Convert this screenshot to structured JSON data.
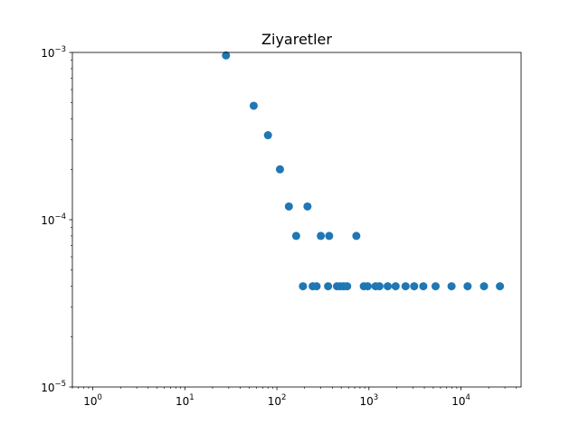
{
  "chart_data": {
    "type": "scatter",
    "title": "Ziyaretler",
    "xlabel": "",
    "ylabel": "",
    "x_scale": "log",
    "y_scale": "log",
    "xlim": [
      0.6,
      45000
    ],
    "ylim": [
      1e-05,
      0.001
    ],
    "grid": false,
    "marker_color": "#1f77b4",
    "x_ticks": [
      {
        "value": 1,
        "base": "10",
        "exp": "0"
      },
      {
        "value": 10,
        "base": "10",
        "exp": "1"
      },
      {
        "value": 100,
        "base": "10",
        "exp": "2"
      },
      {
        "value": 1000,
        "base": "10",
        "exp": "3"
      },
      {
        "value": 10000,
        "base": "10",
        "exp": "4"
      }
    ],
    "y_ticks": [
      {
        "value": 1e-05,
        "base": "10",
        "exp": "−5"
      },
      {
        "value": 0.0001,
        "base": "10",
        "exp": "−4"
      },
      {
        "value": 0.001,
        "base": "10",
        "exp": "−3"
      }
    ],
    "points": [
      {
        "x": 28,
        "y": 0.00096
      },
      {
        "x": 56,
        "y": 0.00048
      },
      {
        "x": 80,
        "y": 0.00032
      },
      {
        "x": 108,
        "y": 0.0002
      },
      {
        "x": 135,
        "y": 0.00012
      },
      {
        "x": 215,
        "y": 0.00012
      },
      {
        "x": 162,
        "y": 8e-05
      },
      {
        "x": 300,
        "y": 8e-05
      },
      {
        "x": 370,
        "y": 8e-05
      },
      {
        "x": 730,
        "y": 8e-05
      },
      {
        "x": 192,
        "y": 4e-05
      },
      {
        "x": 245,
        "y": 4e-05
      },
      {
        "x": 270,
        "y": 4e-05
      },
      {
        "x": 360,
        "y": 4e-05
      },
      {
        "x": 450,
        "y": 4e-05
      },
      {
        "x": 490,
        "y": 4e-05
      },
      {
        "x": 530,
        "y": 4e-05
      },
      {
        "x": 580,
        "y": 4e-05
      },
      {
        "x": 880,
        "y": 4e-05
      },
      {
        "x": 970,
        "y": 4e-05
      },
      {
        "x": 1180,
        "y": 4e-05
      },
      {
        "x": 1300,
        "y": 4e-05
      },
      {
        "x": 1600,
        "y": 4e-05
      },
      {
        "x": 1950,
        "y": 4e-05
      },
      {
        "x": 2500,
        "y": 4e-05
      },
      {
        "x": 3100,
        "y": 4e-05
      },
      {
        "x": 3900,
        "y": 4e-05
      },
      {
        "x": 5300,
        "y": 4e-05
      },
      {
        "x": 7900,
        "y": 4e-05
      },
      {
        "x": 11800,
        "y": 4e-05
      },
      {
        "x": 17800,
        "y": 4e-05
      },
      {
        "x": 26500,
        "y": 4e-05
      }
    ]
  }
}
